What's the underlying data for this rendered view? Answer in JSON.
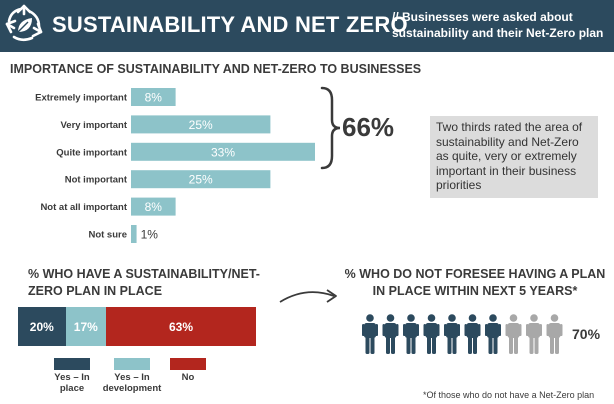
{
  "header": {
    "title": "SUSTAINABILITY AND NET ZERO",
    "subtitle": "// Businesses were asked about sustainability and their Net-Zero plan",
    "logo_icon": "recycle-leaf-icon"
  },
  "colors": {
    "header_bg": "#2c4a5e",
    "bar": "#8dc3c9",
    "dark": "#2c4a5e",
    "light": "#8dc3c9",
    "red": "#b3261e",
    "grey_person": "#a8a8a8"
  },
  "importance": {
    "title": "IMPORTANCE OF SUSTAINABILITY AND NET-ZERO TO BUSINESSES",
    "bracket_label": "66%",
    "note": "Two thirds rated the area of sustainability and Net-Zero as quite, very or extremely important in their business priorities"
  },
  "plan": {
    "title_line1": "% WHO HAVE A SUSTAINABILITY/NET-",
    "title_line2": "ZERO PLAN IN PLACE",
    "legend": [
      {
        "label_line1": "Yes – In",
        "label_line2": "place"
      },
      {
        "label_line1": "Yes – In",
        "label_line2": "development"
      },
      {
        "label_line1": "No",
        "label_line2": ""
      }
    ]
  },
  "foresee": {
    "title_line1": "% WHO DO NOT FORESEE HAVING A PLAN",
    "title_line2": "IN PLACE WITHIN NEXT 5 YEARS*",
    "people_total": 10,
    "people_highlighted": 7,
    "percent_label": "70%",
    "footnote": "*Of those who do not have a Net-Zero plan"
  },
  "chart_data": [
    {
      "type": "bar",
      "orientation": "horizontal",
      "title": "IMPORTANCE OF SUSTAINABILITY AND NET-ZERO TO BUSINESSES",
      "categories": [
        "Extremely important",
        "Very important",
        "Quite important",
        "Not important",
        "Not at all important",
        "Not sure"
      ],
      "values": [
        8,
        25,
        33,
        25,
        8,
        1
      ],
      "labels": [
        "8%",
        "25%",
        "33%",
        "25%",
        "8%",
        "1%"
      ],
      "xlim": [
        0,
        33
      ],
      "grid": false,
      "color": "#8dc3c9"
    },
    {
      "type": "bar",
      "orientation": "stacked-horizontal",
      "title": "% WHO HAVE A SUSTAINABILITY/NET-ZERO PLAN IN PLACE",
      "series": [
        {
          "name": "Yes – In place",
          "value": 20,
          "label": "20%",
          "color": "#2c4a5e"
        },
        {
          "name": "Yes – In development",
          "value": 17,
          "label": "17%",
          "color": "#8dc3c9"
        },
        {
          "name": "No",
          "value": 63,
          "label": "63%",
          "color": "#b3261e"
        }
      ],
      "legend": "bottom"
    }
  ]
}
